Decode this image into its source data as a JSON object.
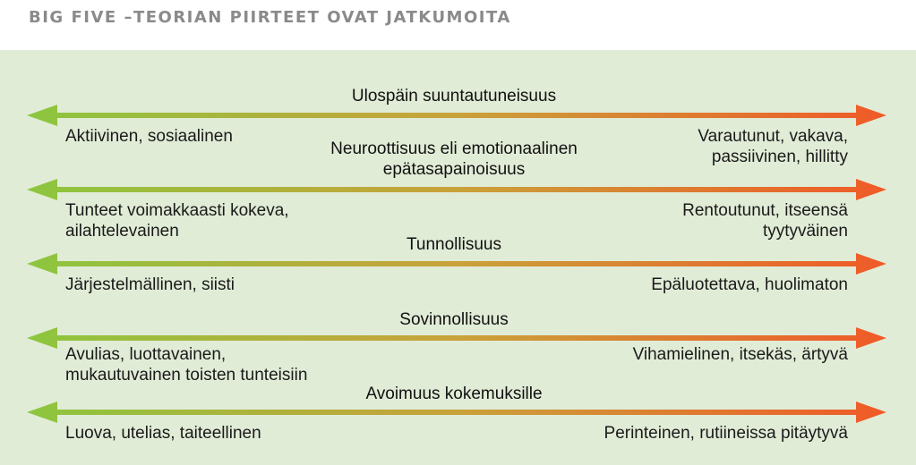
{
  "header": {
    "title": "BIG FIVE –TEORIAN PIIRTEET OVAT JATKUMOITA"
  },
  "colors": {
    "background": "#e1ecd7",
    "gradient_left": "#8cc63f",
    "gradient_mid": "#c9a23a",
    "gradient_right": "#f05a28"
  },
  "traits": [
    {
      "title_lines": [
        "Ulospäin suuntautuneisuus"
      ],
      "left_lines": [
        "Aktiivinen, sosiaalinen"
      ],
      "right_lines": [
        "Varautunut, vakava,",
        "passiivinen, hillitty"
      ]
    },
    {
      "title_lines": [
        "Neuroottisuus eli emotionaalinen",
        "epätasapainoisuus"
      ],
      "left_lines": [
        "Tunteet voimakkaasti kokeva,",
        "ailahtelevainen"
      ],
      "right_lines": [
        "Rentoutunut, itseensä",
        "tyytyväinen"
      ]
    },
    {
      "title_lines": [
        "Tunnollisuus"
      ],
      "left_lines": [
        "Järjestelmällinen, siisti"
      ],
      "right_lines": [
        "Epäluotettava, huolimaton"
      ]
    },
    {
      "title_lines": [
        "Sovinnollisuus"
      ],
      "left_lines": [
        "Avulias, luottavainen,",
        "mukautuvainen toisten tunteisiin"
      ],
      "right_lines": [
        "Vihamielinen, itsekäs, ärtyvä"
      ]
    },
    {
      "title_lines": [
        "Avoimuus kokemuksille"
      ],
      "left_lines": [
        "Luova, utelias, taiteellinen"
      ],
      "right_lines": [
        "Perinteinen, rutiineissa pitäytyvä"
      ]
    }
  ]
}
